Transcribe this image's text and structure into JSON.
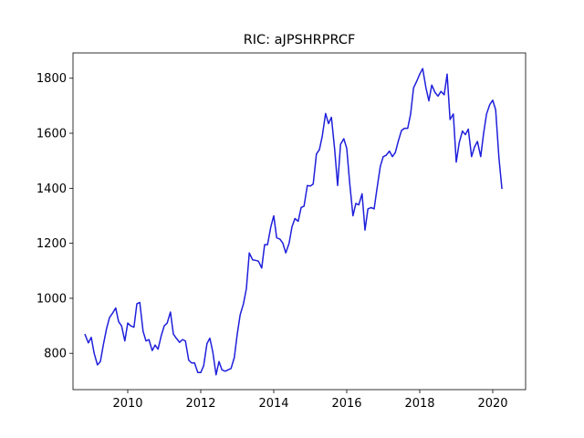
{
  "chart_data": {
    "type": "line",
    "title": "RIC: aJPSHRPRCF",
    "xlabel": "",
    "ylabel": "",
    "xlim": [
      2008.5,
      2020.9
    ],
    "ylim": [
      668,
      1892
    ],
    "x_ticks": [
      2010,
      2012,
      2014,
      2016,
      2018,
      2020
    ],
    "x_tick_labels": [
      "2010",
      "2012",
      "2014",
      "2016",
      "2018",
      "2020"
    ],
    "y_ticks": [
      800,
      1000,
      1200,
      1400,
      1600,
      1800
    ],
    "y_tick_labels": [
      "800",
      "1000",
      "1200",
      "1400",
      "1600",
      "1800"
    ],
    "grid": false,
    "legend": "none",
    "series": [
      {
        "color": "#1f1fdc",
        "x": [
          2008.83,
          2008.92,
          2009.0,
          2009.08,
          2009.17,
          2009.25,
          2009.33,
          2009.42,
          2009.5,
          2009.58,
          2009.67,
          2009.75,
          2009.83,
          2009.92,
          2010.0,
          2010.08,
          2010.17,
          2010.25,
          2010.33,
          2010.42,
          2010.5,
          2010.58,
          2010.67,
          2010.75,
          2010.83,
          2010.92,
          2011.0,
          2011.08,
          2011.17,
          2011.25,
          2011.33,
          2011.42,
          2011.5,
          2011.58,
          2011.67,
          2011.75,
          2011.83,
          2011.92,
          2012.0,
          2012.08,
          2012.17,
          2012.25,
          2012.33,
          2012.42,
          2012.5,
          2012.58,
          2012.67,
          2012.75,
          2012.83,
          2012.92,
          2013.0,
          2013.08,
          2013.17,
          2013.25,
          2013.33,
          2013.42,
          2013.5,
          2013.58,
          2013.67,
          2013.75,
          2013.83,
          2013.92,
          2014.0,
          2014.08,
          2014.17,
          2014.25,
          2014.33,
          2014.42,
          2014.5,
          2014.58,
          2014.67,
          2014.75,
          2014.83,
          2014.92,
          2015.0,
          2015.08,
          2015.17,
          2015.25,
          2015.33,
          2015.42,
          2015.5,
          2015.58,
          2015.67,
          2015.75,
          2015.83,
          2015.92,
          2016.0,
          2016.08,
          2016.17,
          2016.25,
          2016.33,
          2016.42,
          2016.5,
          2016.58,
          2016.67,
          2016.75,
          2016.83,
          2016.92,
          2017.0,
          2017.08,
          2017.17,
          2017.25,
          2017.33,
          2017.42,
          2017.5,
          2017.58,
          2017.67,
          2017.75,
          2017.83,
          2017.92,
          2018.0,
          2018.08,
          2018.17,
          2018.25,
          2018.33,
          2018.42,
          2018.5,
          2018.58,
          2018.67,
          2018.75,
          2018.83,
          2018.92,
          2019.0,
          2019.08,
          2019.17,
          2019.25,
          2019.33,
          2019.42,
          2019.5,
          2019.58,
          2019.67,
          2019.75,
          2019.83,
          2019.92,
          2020.0,
          2020.08,
          2020.17,
          2020.25
        ],
        "y": [
          868,
          838,
          858,
          800,
          758,
          770,
          830,
          890,
          930,
          945,
          965,
          915,
          900,
          845,
          910,
          900,
          895,
          980,
          985,
          880,
          845,
          850,
          810,
          830,
          815,
          865,
          900,
          910,
          950,
          870,
          855,
          840,
          850,
          845,
          775,
          765,
          765,
          730,
          730,
          755,
          835,
          855,
          805,
          722,
          770,
          740,
          735,
          740,
          745,
          785,
          870,
          940,
          980,
          1035,
          1165,
          1140,
          1138,
          1135,
          1110,
          1195,
          1195,
          1260,
          1300,
          1220,
          1215,
          1200,
          1165,
          1200,
          1260,
          1290,
          1280,
          1330,
          1335,
          1410,
          1408,
          1415,
          1525,
          1540,
          1590,
          1672,
          1635,
          1658,
          1540,
          1410,
          1560,
          1580,
          1545,
          1420,
          1300,
          1345,
          1340,
          1380,
          1248,
          1325,
          1330,
          1325,
          1400,
          1480,
          1515,
          1520,
          1535,
          1515,
          1530,
          1575,
          1610,
          1618,
          1618,
          1670,
          1765,
          1790,
          1815,
          1835,
          1765,
          1718,
          1775,
          1748,
          1735,
          1752,
          1740,
          1815,
          1650,
          1670,
          1495,
          1565,
          1608,
          1595,
          1615,
          1515,
          1550,
          1570,
          1515,
          1600,
          1670,
          1705,
          1720,
          1685,
          1510,
          1400
        ]
      }
    ]
  }
}
